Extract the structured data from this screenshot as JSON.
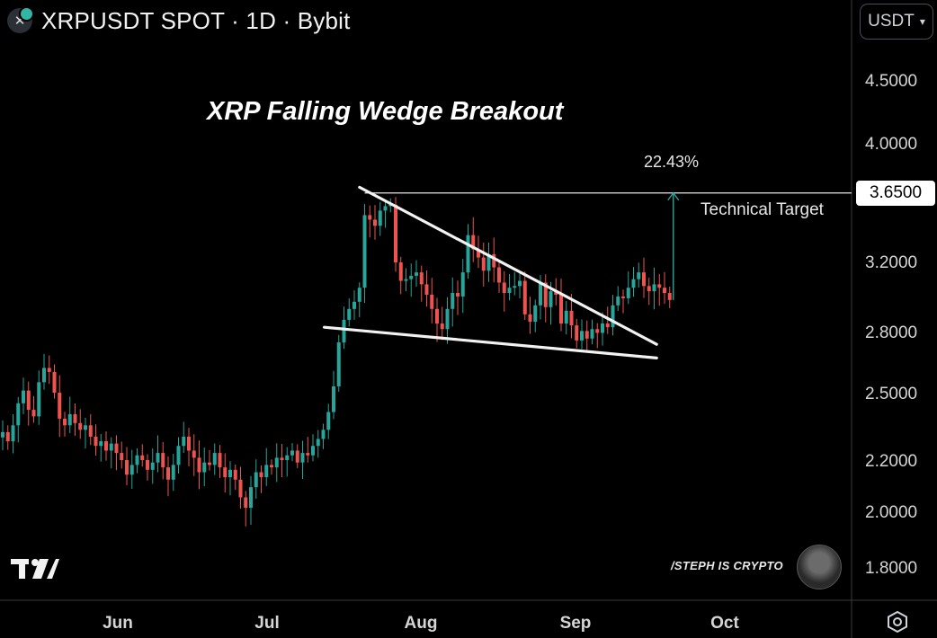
{
  "header": {
    "title": "XRPUSDT SPOT · 1D · Bybit",
    "close_glyph": "✕"
  },
  "currency_selector": {
    "label": "USDT",
    "icon": "chevron-down-icon"
  },
  "watermark": {
    "brand": "/STEPH IS CRYPTO"
  },
  "colors": {
    "up": "#26a69a",
    "down": "#ef5350",
    "grid": "#2a2a2a",
    "target_arrow": "#26a69a"
  },
  "chart_data": {
    "type": "candlestick",
    "title": "XRP Falling Wedge Breakout",
    "y_scale": "log",
    "ylim": [
      1.7,
      5.0
    ],
    "y_ticks": [
      "4.5000",
      "4.0000",
      "3.2000",
      "2.8000",
      "2.5000",
      "2.2000",
      "2.0000",
      "1.8000"
    ],
    "x_ticks": [
      "Jun",
      "Jul",
      "Aug",
      "Sep",
      "Oct"
    ],
    "price_tag": "3.6500",
    "target_label": "Technical Target",
    "target_percent": "22.43%",
    "target_level": 3.65,
    "arrow_from": 2.98,
    "wedge_upper": {
      "x1": "2025-07-19",
      "y1": 3.69,
      "x2": "2025-09-16",
      "y2": 2.74
    },
    "wedge_lower": {
      "x1": "2025-07-12",
      "y1": 2.83,
      "x2": "2025-09-16",
      "y2": 2.67
    },
    "closes": [
      2.32,
      2.28,
      2.35,
      2.45,
      2.51,
      2.42,
      2.39,
      2.55,
      2.62,
      2.6,
      2.5,
      2.38,
      2.35,
      2.4,
      2.36,
      2.33,
      2.35,
      2.3,
      2.26,
      2.28,
      2.24,
      2.27,
      2.23,
      2.2,
      2.14,
      2.18,
      2.22,
      2.2,
      2.16,
      2.19,
      2.23,
      2.17,
      2.12,
      2.18,
      2.26,
      2.3,
      2.24,
      2.21,
      2.15,
      2.19,
      2.18,
      2.23,
      2.17,
      2.13,
      2.16,
      2.12,
      2.05,
      2.01,
      2.09,
      2.15,
      2.13,
      2.18,
      2.17,
      2.21,
      2.2,
      2.22,
      2.24,
      2.19,
      2.23,
      2.22,
      2.26,
      2.29,
      2.33,
      2.41,
      2.53,
      2.75,
      2.87,
      2.93,
      2.97,
      3.05,
      3.5,
      3.47,
      3.43,
      3.53,
      3.56,
      3.57,
      3.2,
      3.09,
      3.1,
      3.12,
      3.14,
      3.07,
      3.01,
      2.93,
      2.85,
      2.82,
      2.93,
      3.02,
      3.0,
      3.14,
      3.37,
      3.28,
      3.23,
      3.15,
      3.25,
      3.17,
      3.08,
      3.02,
      3.05,
      3.06,
      3.09,
      2.9,
      2.86,
      2.95,
      3.08,
      2.94,
      3.03,
      3.01,
      2.85,
      2.92,
      2.84,
      2.76,
      2.81,
      2.77,
      2.82,
      2.8,
      2.85,
      2.83,
      2.95,
      3.0,
      2.99,
      3.05,
      3.1,
      3.14,
      3.06,
      3.03,
      3.07,
      3.05,
      3.02,
      2.98
    ]
  }
}
